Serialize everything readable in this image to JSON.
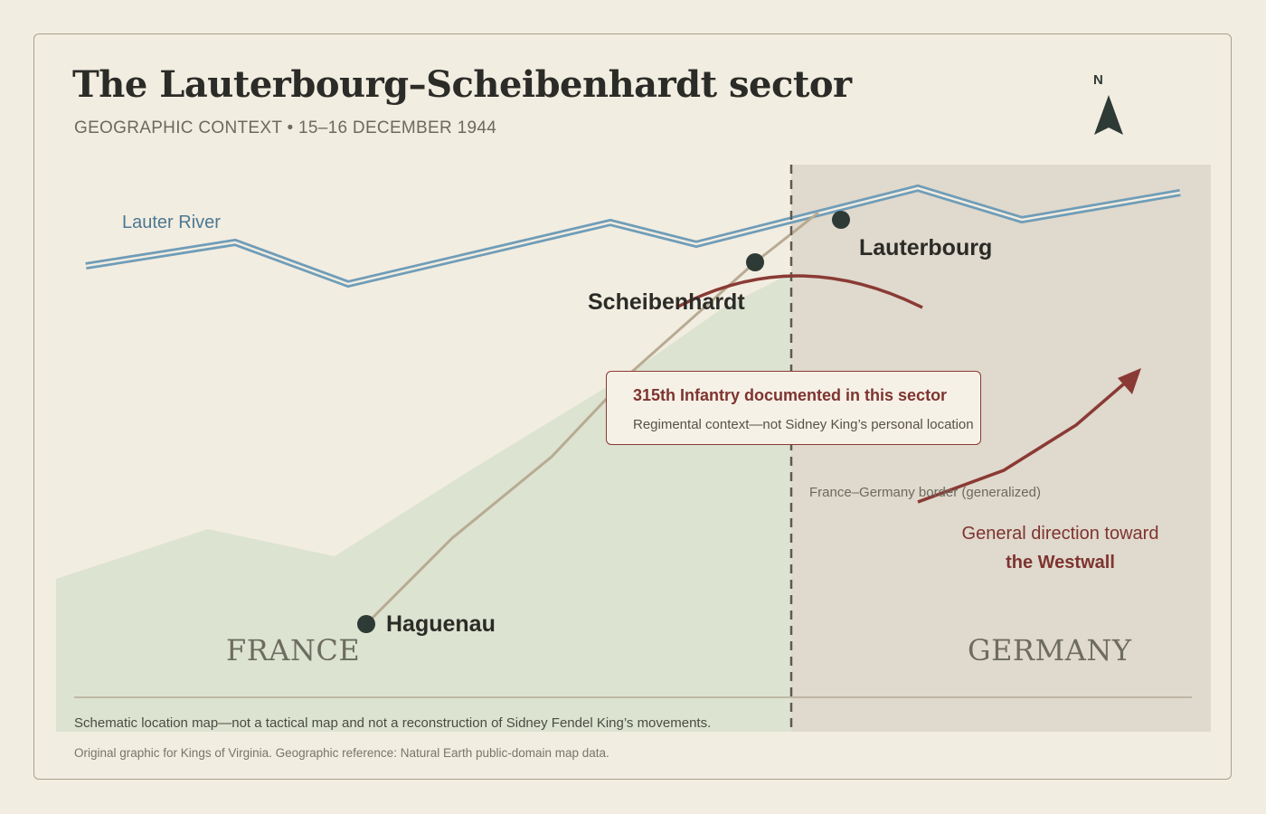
{
  "title": "The Lauterbourg–Scheibenhardt sector",
  "subtitle": "GEOGRAPHIC CONTEXT • 15–16 DECEMBER 1944",
  "compass": {
    "label": "N",
    "icon": "north-arrow-icon"
  },
  "river": {
    "label": "Lauter River",
    "color": "#6f9db8"
  },
  "towns": {
    "lauterbourg": "Lauterbourg",
    "scheibenhardt": "Scheibenhardt",
    "haguenau": "Haguenau"
  },
  "countries": {
    "france": "FRANCE",
    "germany": "GERMANY"
  },
  "border_label": "France–Germany border (generalized)",
  "direction": {
    "line1": "General direction toward",
    "line2": "the Westwall"
  },
  "callout": {
    "title": "315th Infantry documented in this sector",
    "body": "Regimental context—not Sidney King’s personal location"
  },
  "footer": {
    "note": "Schematic location map—not a tactical map and not a reconstruction of Sidney Fendel King’s movements.",
    "credit": "Original graphic for Kings of Virginia. Geographic reference: Natural Earth public-domain map data."
  },
  "colors": {
    "background": "#f2ede1",
    "france_fill": "#dce3d1",
    "germany_fill": "#e0d9cd",
    "accent": "#8a3a34",
    "road": "#b8ab92",
    "marker": "#2e3a35"
  }
}
